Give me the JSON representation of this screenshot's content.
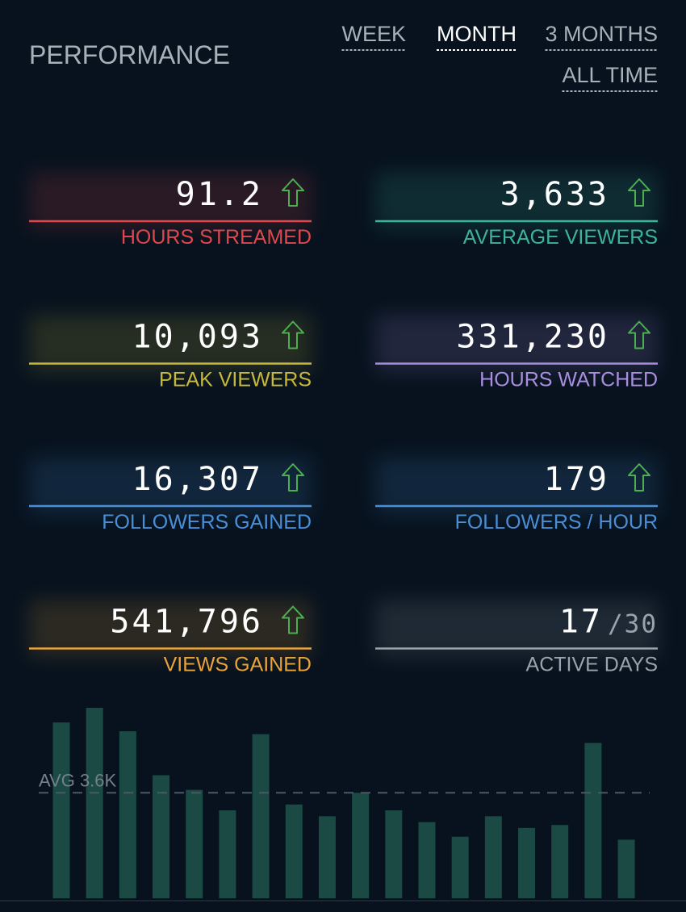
{
  "header": {
    "title": "PERFORMANCE",
    "tabs": [
      "WEEK",
      "MONTH",
      "3 MONTHS",
      "ALL TIME"
    ],
    "active_tab": 1
  },
  "stats": [
    {
      "value": "91.2",
      "label": "HOURS STREAMED",
      "color": "#e0474c",
      "trend": "up"
    },
    {
      "value": "3,633",
      "label": "AVERAGE VIEWERS",
      "color": "#3bb59a",
      "trend": "up"
    },
    {
      "value": "10,093",
      "label": "PEAK VIEWERS",
      "color": "#c8b93a",
      "trend": "up"
    },
    {
      "value": "331,230",
      "label": "HOURS WATCHED",
      "color": "#a98ee0",
      "trend": "up"
    },
    {
      "value": "16,307",
      "label": "FOLLOWERS GAINED",
      "color": "#4a8fd6",
      "trend": "up"
    },
    {
      "value": "179",
      "label": "FOLLOWERS / HOUR",
      "color": "#4a8fd6",
      "trend": "up"
    },
    {
      "value": "541,796",
      "label": "VIEWS GAINED",
      "color": "#e8a33a",
      "trend": "up"
    },
    {
      "value": "17",
      "total": "/30",
      "label": "ACTIVE DAYS",
      "color": "#9aa3ab"
    }
  ],
  "chart_data": {
    "type": "bar",
    "color": "#1a4a43",
    "values": [
      6000,
      6500,
      5700,
      4200,
      3700,
      3000,
      5600,
      3200,
      2800,
      3600,
      3000,
      2600,
      2100,
      2800,
      2400,
      2500,
      5300,
      2000
    ],
    "average": {
      "value": 3600,
      "label": "AVG 3.6K"
    }
  }
}
